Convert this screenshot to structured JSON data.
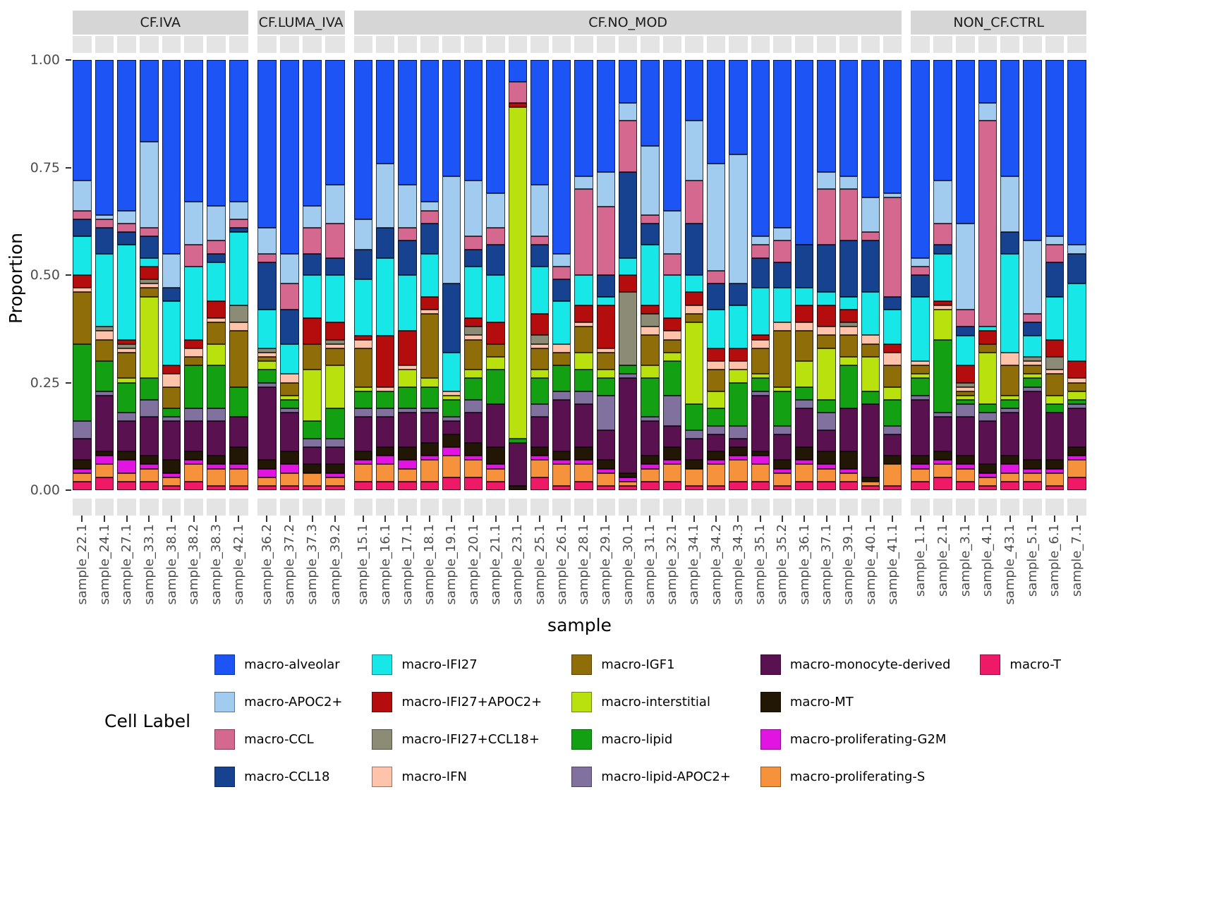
{
  "chart_data": {
    "type": "bar",
    "subtype": "stacked-proportion-faceted",
    "xlabel": "sample",
    "ylabel": "Proportion",
    "legend_title": "Cell Label",
    "ylim": [
      0,
      1
    ],
    "ytick_values": [
      0,
      0.25,
      0.5,
      0.75,
      1
    ],
    "ytick_labels": [
      "0.00",
      "0.25",
      "0.50",
      "0.75",
      "1.00"
    ],
    "categories_bottom_to_top": [
      "macro-T",
      "macro-proliferating-S",
      "macro-proliferating-G2M",
      "macro-MT",
      "macro-monocyte-derived",
      "macro-lipid-APOC2+",
      "macro-lipid",
      "macro-interstitial",
      "macro-IGF1",
      "macro-IFN",
      "macro-IFI27+CCL18+",
      "macro-IFI27+APOC2+",
      "macro-IFI27",
      "macro-CCL18",
      "macro-CCL",
      "macro-APOC2+",
      "macro-alveolar"
    ],
    "legend_items": [
      "macro-alveolar",
      "macro-APOC2+",
      "macro-CCL",
      "macro-CCL18",
      "macro-IFI27",
      "macro-IFI27+APOC2+",
      "macro-IFI27+CCL18+",
      "macro-IFN",
      "macro-IGF1",
      "macro-interstitial",
      "macro-lipid",
      "macro-lipid-APOC2+",
      "macro-monocyte-derived",
      "macro-MT",
      "macro-proliferating-G2M",
      "macro-proliferating-S",
      "macro-T"
    ],
    "series_colors": {
      "macro-alveolar": "#1c54f5",
      "macro-APOC2+": "#a1cbef",
      "macro-CCL": "#d4688f",
      "macro-CCL18": "#17428f",
      "macro-IFI27": "#17e7e7",
      "macro-IFI27+APOC2+": "#b50d0d",
      "macro-IFI27+CCL18+": "#8b8b76",
      "macro-IFN": "#ffc3ab",
      "macro-IGF1": "#8f6d08",
      "macro-interstitial": "#b8e10e",
      "macro-lipid": "#13a113",
      "macro-lipid-APOC2+": "#80719f",
      "macro-monocyte-derived": "#5a1150",
      "macro-MT": "#221604",
      "macro-proliferating-G2M": "#e214e2",
      "macro-proliferating-S": "#f6923c",
      "macro-T": "#ee1a68"
    },
    "facets": [
      {
        "label": "CF.IVA",
        "samples": [
          "sample_22.1",
          "sample_24.1",
          "sample_27.1",
          "sample_33.1",
          "sample_38.1",
          "sample_38.2",
          "sample_38.3",
          "sample_42.1"
        ],
        "values": [
          [
            0.02,
            0.02,
            0.01,
            0.02,
            0.05,
            0.04,
            0.18,
            0,
            0.12,
            0.01,
            0,
            0.03,
            0.09,
            0.04,
            0.02,
            0.07,
            0.28
          ],
          [
            0.03,
            0.03,
            0.02,
            0.01,
            0.13,
            0.01,
            0.07,
            0,
            0.05,
            0.02,
            0.01,
            0,
            0.17,
            0.06,
            0.02,
            0.01,
            0.36
          ],
          [
            0.02,
            0.02,
            0.03,
            0.02,
            0.07,
            0.02,
            0.07,
            0.01,
            0.06,
            0.01,
            0.01,
            0.01,
            0.22,
            0.03,
            0.02,
            0.03,
            0.35
          ],
          [
            0.02,
            0.03,
            0.01,
            0.02,
            0.09,
            0.04,
            0.05,
            0.19,
            0.02,
            0.01,
            0.01,
            0.03,
            0.02,
            0.05,
            0.02,
            0.2,
            0.19
          ],
          [
            0.01,
            0.02,
            0.01,
            0.03,
            0.09,
            0.01,
            0.02,
            0,
            0.05,
            0.03,
            0,
            0.02,
            0.15,
            0.03,
            0,
            0.08,
            0.45
          ],
          [
            0.02,
            0.04,
            0.01,
            0.02,
            0.07,
            0.03,
            0.1,
            0,
            0.02,
            0.02,
            0,
            0.02,
            0.17,
            0,
            0.05,
            0.1,
            0.33
          ],
          [
            0.01,
            0.04,
            0.01,
            0.02,
            0.08,
            0.03,
            0.1,
            0.05,
            0.05,
            0.01,
            0,
            0.04,
            0.09,
            0.02,
            0.03,
            0.08,
            0.34
          ],
          [
            0.01,
            0.04,
            0.01,
            0.04,
            0.07,
            0,
            0.07,
            0,
            0.13,
            0.02,
            0.04,
            0,
            0.17,
            0.01,
            0.02,
            0.04,
            0.33
          ]
        ]
      },
      {
        "label": "CF.LUMA_IVA",
        "samples": [
          "sample_36.2",
          "sample_37.2",
          "sample_37.3",
          "sample_39.2"
        ],
        "values": [
          [
            0.01,
            0.02,
            0.02,
            0.02,
            0.17,
            0.01,
            0.03,
            0.02,
            0.01,
            0.01,
            0.01,
            0,
            0.09,
            0.11,
            0.02,
            0.06,
            0.39
          ],
          [
            0.01,
            0.03,
            0.02,
            0.03,
            0.09,
            0.01,
            0.02,
            0.01,
            0.03,
            0.02,
            0,
            0,
            0.07,
            0.08,
            0.06,
            0.07,
            0.45
          ],
          [
            0.01,
            0.03,
            0,
            0.02,
            0.04,
            0.02,
            0.04,
            0.12,
            0.06,
            0,
            0,
            0.06,
            0.1,
            0.05,
            0.06,
            0.05,
            0.34
          ],
          [
            0.01,
            0.02,
            0.01,
            0.02,
            0.04,
            0.02,
            0.07,
            0.1,
            0.04,
            0.01,
            0.01,
            0.04,
            0.11,
            0.04,
            0.08,
            0.09,
            0.29
          ]
        ]
      },
      {
        "label": "CF.NO_MOD",
        "samples": [
          "sample_15.1",
          "sample_16.1",
          "sample_17.1",
          "sample_18.1",
          "sample_19.1",
          "sample_20.1",
          "sample_21.1",
          "sample_23.1",
          "sample_25.1",
          "sample_26.1",
          "sample_28.1",
          "sample_29.1",
          "sample_30.1",
          "sample_31.1",
          "sample_32.1",
          "sample_34.1",
          "sample_34.2",
          "sample_34.3",
          "sample_35.1",
          "sample_35.2",
          "sample_36.1",
          "sample_37.1",
          "sample_39.1",
          "sample_40.1",
          "sample_41.1"
        ],
        "values": [
          [
            0.02,
            0.04,
            0.01,
            0.02,
            0.08,
            0.02,
            0.04,
            0.01,
            0.09,
            0.02,
            0,
            0.01,
            0.13,
            0.07,
            0,
            0.07,
            0.37
          ],
          [
            0.02,
            0.04,
            0.02,
            0.02,
            0.07,
            0.02,
            0.04,
            0,
            0,
            0.01,
            0,
            0.12,
            0.18,
            0.07,
            0,
            0.15,
            0.24
          ],
          [
            0.02,
            0.03,
            0.02,
            0.03,
            0.08,
            0.01,
            0.05,
            0.04,
            0,
            0.01,
            0,
            0.08,
            0.13,
            0.08,
            0.03,
            0.1,
            0.29
          ],
          [
            0.02,
            0.05,
            0.01,
            0.03,
            0.07,
            0.01,
            0.05,
            0.02,
            0.15,
            0.01,
            0,
            0.03,
            0.1,
            0.07,
            0.03,
            0.02,
            0.33
          ],
          [
            0.03,
            0.05,
            0.02,
            0.03,
            0.03,
            0.01,
            0.04,
            0.01,
            0,
            0.01,
            0,
            0,
            0.09,
            0.16,
            0,
            0.25,
            0.27
          ],
          [
            0.03,
            0.04,
            0.01,
            0.03,
            0.07,
            0.03,
            0.05,
            0.02,
            0.07,
            0.01,
            0.02,
            0.02,
            0.12,
            0.04,
            0.03,
            0.13,
            0.28
          ],
          [
            0.02,
            0.03,
            0.01,
            0.04,
            0.1,
            0,
            0.08,
            0.03,
            0.03,
            0,
            0,
            0.05,
            0.11,
            0.07,
            0.04,
            0.08,
            0.31
          ],
          [
            0,
            0,
            0,
            0.01,
            0.1,
            0,
            0.01,
            0.77,
            0,
            0,
            0,
            0.01,
            0,
            0,
            0.05,
            0,
            0.05
          ],
          [
            0.03,
            0.04,
            0.01,
            0.02,
            0.07,
            0.03,
            0.06,
            0.02,
            0.05,
            0.01,
            0.02,
            0.05,
            0.11,
            0.05,
            0.02,
            0.12,
            0.29
          ],
          [
            0.01,
            0.05,
            0.01,
            0.02,
            0.12,
            0.02,
            0.06,
            0,
            0.03,
            0.02,
            0,
            0,
            0.1,
            0.05,
            0.03,
            0.03,
            0.45
          ],
          [
            0.02,
            0.04,
            0.01,
            0.03,
            0.1,
            0.03,
            0.05,
            0.04,
            0.06,
            0.01,
            0,
            0.04,
            0.07,
            0,
            0.2,
            0.03,
            0.27
          ],
          [
            0.01,
            0.03,
            0.01,
            0.02,
            0.07,
            0.08,
            0.04,
            0.02,
            0.04,
            0.01,
            0,
            0.1,
            0.02,
            0.05,
            0.16,
            0.08,
            0.26
          ],
          [
            0.01,
            0.01,
            0.01,
            0.01,
            0.22,
            0.01,
            0.02,
            0,
            0,
            0,
            0.17,
            0.04,
            0.04,
            0.2,
            0.12,
            0.04,
            0.1
          ],
          [
            0.02,
            0.03,
            0.01,
            0.02,
            0.08,
            0.01,
            0.09,
            0.03,
            0.07,
            0.02,
            0.03,
            0.02,
            0.14,
            0.05,
            0.02,
            0.16,
            0.2
          ],
          [
            0.02,
            0.04,
            0.01,
            0.03,
            0.05,
            0.07,
            0.08,
            0.02,
            0.03,
            0.02,
            0,
            0.03,
            0.1,
            0,
            0.05,
            0.1,
            0.35
          ],
          [
            0.01,
            0.04,
            0,
            0.02,
            0.05,
            0.02,
            0.06,
            0.19,
            0.02,
            0.02,
            0,
            0.03,
            0.04,
            0.12,
            0.1,
            0.14,
            0.14
          ],
          [
            0.01,
            0.05,
            0.01,
            0.02,
            0.04,
            0.02,
            0.04,
            0.04,
            0.05,
            0.02,
            0,
            0.03,
            0.09,
            0.06,
            0.03,
            0.25,
            0.24
          ],
          [
            0.02,
            0.05,
            0.01,
            0.02,
            0.02,
            0.03,
            0.1,
            0.03,
            0,
            0.02,
            0,
            0.03,
            0.1,
            0.05,
            0,
            0.3,
            0.22
          ],
          [
            0.02,
            0.04,
            0.02,
            0.01,
            0.13,
            0.01,
            0.03,
            0.01,
            0.06,
            0.02,
            0,
            0.01,
            0.11,
            0.07,
            0.03,
            0.02,
            0.41
          ],
          [
            0.01,
            0.03,
            0.01,
            0.02,
            0.06,
            0.02,
            0.08,
            0.01,
            0.13,
            0.02,
            0,
            0,
            0.08,
            0.06,
            0.05,
            0.03,
            0.39
          ],
          [
            0.02,
            0.04,
            0.01,
            0.03,
            0.09,
            0.02,
            0.03,
            0.06,
            0.07,
            0.02,
            0,
            0.04,
            0.04,
            0.1,
            0,
            0,
            0.43
          ],
          [
            0.02,
            0.03,
            0.01,
            0.03,
            0.05,
            0.04,
            0.03,
            0.12,
            0.03,
            0.02,
            0,
            0.05,
            0.03,
            0.11,
            0.13,
            0.04,
            0.26
          ],
          [
            0.02,
            0.02,
            0.01,
            0.04,
            0.1,
            0,
            0.1,
            0.02,
            0.05,
            0.02,
            0.01,
            0.03,
            0.03,
            0.13,
            0.12,
            0.03,
            0.27
          ],
          [
            0.01,
            0.01,
            0,
            0.01,
            0.17,
            0,
            0.03,
            0.08,
            0.03,
            0.02,
            0,
            0,
            0.1,
            0.12,
            0.02,
            0.08,
            0.32
          ],
          [
            0.01,
            0.05,
            0,
            0.02,
            0.05,
            0.02,
            0.06,
            0.03,
            0.05,
            0.03,
            0,
            0.02,
            0.08,
            0.03,
            0.23,
            0.01,
            0.31
          ]
        ]
      },
      {
        "label": "NON_CF.CTRL",
        "samples": [
          "sample_1.1",
          "sample_2.1",
          "sample_3.1",
          "sample_4.1",
          "sample_43.1",
          "sample_5.1",
          "sample_6.1",
          "sample_7.1"
        ],
        "values": [
          [
            0.02,
            0.03,
            0.01,
            0.02,
            0.13,
            0.01,
            0.04,
            0.01,
            0.02,
            0.01,
            0,
            0,
            0.15,
            0.05,
            0.02,
            0.02,
            0.46
          ],
          [
            0.03,
            0.03,
            0.01,
            0.02,
            0.08,
            0.01,
            0.17,
            0.07,
            0,
            0.01,
            0,
            0.01,
            0.11,
            0.02,
            0.05,
            0.1,
            0.28
          ],
          [
            0.02,
            0.03,
            0.01,
            0.02,
            0.09,
            0.03,
            0.01,
            0.01,
            0.01,
            0.01,
            0.01,
            0.04,
            0.07,
            0.02,
            0.04,
            0.2,
            0.38
          ],
          [
            0.01,
            0.02,
            0.01,
            0.02,
            0.1,
            0.02,
            0.02,
            0.12,
            0.02,
            0,
            0,
            0.03,
            0.01,
            0,
            0.48,
            0.04,
            0.1
          ],
          [
            0.02,
            0.02,
            0.02,
            0.02,
            0.1,
            0.01,
            0.02,
            0.01,
            0.07,
            0.03,
            0,
            0,
            0.23,
            0.05,
            0,
            0.13,
            0.27
          ],
          [
            0.02,
            0.02,
            0.01,
            0.02,
            0.16,
            0.01,
            0.02,
            0.01,
            0.02,
            0.01,
            0.01,
            0,
            0.05,
            0.03,
            0.02,
            0.17,
            0.42
          ],
          [
            0.01,
            0.03,
            0.01,
            0.02,
            0.11,
            0,
            0.02,
            0.02,
            0.05,
            0.01,
            0.03,
            0.04,
            0.1,
            0.08,
            0.04,
            0.02,
            0.41
          ],
          [
            0.03,
            0.04,
            0.01,
            0.02,
            0.09,
            0.01,
            0.01,
            0.02,
            0.02,
            0.01,
            0,
            0.04,
            0.18,
            0.07,
            0,
            0.02,
            0.43
          ]
        ]
      }
    ]
  }
}
